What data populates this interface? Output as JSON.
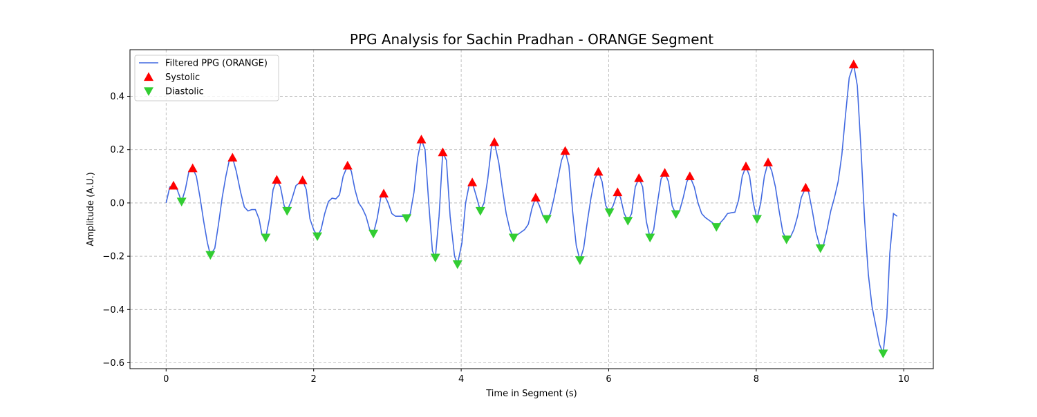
{
  "chart_data": {
    "type": "line",
    "title": "PPG Analysis for Sachin Pradhan - ORANGE Segment",
    "x_label": "Time in Segment (s)",
    "y_label": "Amplitude (A.U.)",
    "xlim": [
      -0.49,
      10.4
    ],
    "ylim": [
      -0.622,
      0.575
    ],
    "xticks": [
      0,
      2,
      4,
      6,
      8,
      10
    ],
    "yticks": [
      {
        "value": -0.6,
        "label": "−0.6"
      },
      {
        "value": -0.4,
        "label": "−0.4"
      },
      {
        "value": -0.2,
        "label": "−0.2"
      },
      {
        "value": 0,
        "label": "0.0"
      },
      0.2,
      0.4
    ],
    "grid": true,
    "legend": "upper-left",
    "series": [
      {
        "name": "Filtered PPG (ORANGE)",
        "kind": "line",
        "color": "#4169e1",
        "x": [
          0,
          0.05,
          0.1,
          0.15,
          0.21,
          0.26,
          0.31,
          0.36,
          0.41,
          0.46,
          0.51,
          0.56,
          0.6,
          0.66,
          0.71,
          0.76,
          0.81,
          0.86,
          0.9,
          0.95,
          1.01,
          1.06,
          1.11,
          1.16,
          1.21,
          1.26,
          1.3,
          1.35,
          1.4,
          1.45,
          1.5,
          1.55,
          1.6,
          1.64,
          1.7,
          1.76,
          1.85,
          1.9,
          1.95,
          2,
          2.05,
          2.1,
          2.15,
          2.2,
          2.25,
          2.3,
          2.35,
          2.4,
          2.46,
          2.51,
          2.56,
          2.61,
          2.66,
          2.71,
          2.76,
          2.81,
          2.86,
          2.91,
          2.95,
          3.01,
          3.06,
          3.11,
          3.21,
          3.26,
          3.31,
          3.36,
          3.41,
          3.46,
          3.51,
          3.56,
          3.61,
          3.65,
          3.7,
          3.75,
          3.8,
          3.85,
          3.91,
          3.95,
          4.01,
          4.06,
          4.11,
          4.15,
          4.2,
          4.26,
          4.31,
          4.36,
          4.41,
          4.45,
          4.51,
          4.56,
          4.61,
          4.66,
          4.71,
          4.76,
          4.81,
          4.86,
          4.91,
          4.96,
          5.01,
          5.06,
          5.11,
          5.16,
          5.21,
          5.26,
          5.31,
          5.36,
          5.41,
          5.46,
          5.51,
          5.56,
          5.61,
          5.66,
          5.71,
          5.76,
          5.81,
          5.86,
          5.91,
          5.96,
          6.01,
          6.06,
          6.12,
          6.16,
          6.21,
          6.26,
          6.31,
          6.36,
          6.41,
          6.46,
          6.51,
          6.56,
          6.61,
          6.66,
          6.71,
          6.76,
          6.81,
          6.86,
          6.91,
          6.96,
          7.01,
          7.06,
          7.1,
          7.16,
          7.21,
          7.26,
          7.31,
          7.36,
          7.41,
          7.46,
          7.51,
          7.56,
          7.61,
          7.66,
          7.71,
          7.76,
          7.81,
          7.86,
          7.91,
          7.96,
          8.01,
          8.06,
          8.11,
          8.16,
          8.21,
          8.26,
          8.31,
          8.36,
          8.41,
          8.46,
          8.51,
          8.56,
          8.61,
          8.67,
          8.71,
          8.76,
          8.81,
          8.87,
          8.91,
          8.96,
          9.01,
          9.06,
          9.11,
          9.16,
          9.21,
          9.26,
          9.32,
          9.37,
          9.42,
          9.47,
          9.52,
          9.57,
          9.62,
          9.67,
          9.72,
          9.77,
          9.81,
          9.86,
          9.91
        ],
        "values": [
          0,
          0.06,
          0.065,
          0.05,
          0.005,
          0.05,
          0.12,
          0.13,
          0.1,
          0.02,
          -0.07,
          -0.15,
          -0.195,
          -0.17,
          -0.08,
          0.02,
          0.1,
          0.165,
          0.17,
          0.12,
          0.04,
          -0.015,
          -0.03,
          -0.025,
          -0.025,
          -0.06,
          -0.12,
          -0.13,
          -0.06,
          0.05,
          0.087,
          0.06,
          -0.01,
          -0.03,
          0.01,
          0.065,
          0.085,
          0.05,
          -0.06,
          -0.1,
          -0.125,
          -0.1,
          -0.04,
          0.005,
          0.018,
          0.015,
          0.03,
          0.1,
          0.14,
          0.12,
          0.05,
          0,
          -0.02,
          -0.05,
          -0.1,
          -0.115,
          -0.06,
          0.02,
          0.035,
          0,
          -0.04,
          -0.05,
          -0.05,
          -0.057,
          -0.04,
          0.04,
          0.17,
          0.238,
          0.2,
          0,
          -0.18,
          -0.205,
          -0.05,
          0.19,
          0.16,
          -0.05,
          -0.2,
          -0.23,
          -0.15,
          0,
          0.07,
          0.077,
          0.03,
          -0.03,
          0,
          0.09,
          0.21,
          0.228,
          0.15,
          0.05,
          -0.04,
          -0.1,
          -0.13,
          -0.12,
          -0.11,
          -0.1,
          -0.08,
          -0.02,
          0.02,
          -0.01,
          -0.05,
          -0.06,
          -0.04,
          0.02,
          0.09,
          0.16,
          0.195,
          0.14,
          -0.03,
          -0.16,
          -0.215,
          -0.17,
          -0.07,
          0.02,
          0.09,
          0.117,
          0.08,
          -0.01,
          -0.035,
          -0.01,
          0.04,
          0.02,
          -0.04,
          -0.067,
          -0.04,
          0.06,
          0.093,
          0.06,
          -0.07,
          -0.13,
          -0.1,
          0,
          0.09,
          0.113,
          0.08,
          -0.01,
          -0.042,
          -0.03,
          0.02,
          0.08,
          0.1,
          0.06,
          0,
          -0.04,
          -0.055,
          -0.065,
          -0.075,
          -0.09,
          -0.075,
          -0.06,
          -0.04,
          -0.037,
          -0.035,
          0.01,
          0.1,
          0.137,
          0.1,
          0,
          -0.06,
          0,
          0.1,
          0.152,
          0.12,
          0.06,
          -0.03,
          -0.11,
          -0.137,
          -0.13,
          -0.1,
          -0.05,
          0.02,
          0.057,
          0.04,
          -0.03,
          -0.11,
          -0.17,
          -0.16,
          -0.1,
          -0.03,
          0.02,
          0.08,
          0.18,
          0.33,
          0.47,
          0.52,
          0.44,
          0.2,
          -0.07,
          -0.27,
          -0.39,
          -0.46,
          -0.53,
          -0.565,
          -0.43,
          -0.19,
          -0.04,
          -0.05
        ]
      },
      {
        "name": "Systolic",
        "kind": "scatter",
        "marker": "triangle-up",
        "color": "#ff0000",
        "x": [
          0.1,
          0.36,
          0.9,
          1.5,
          1.85,
          2.46,
          2.95,
          3.46,
          3.75,
          4.15,
          4.45,
          5.01,
          5.41,
          5.86,
          6.12,
          6.41,
          6.76,
          7.1,
          7.86,
          8.16,
          8.67,
          9.32
        ],
        "values": [
          0.065,
          0.13,
          0.17,
          0.087,
          0.085,
          0.14,
          0.035,
          0.238,
          0.19,
          0.077,
          0.228,
          0.02,
          0.195,
          0.117,
          0.04,
          0.093,
          0.113,
          0.1,
          0.137,
          0.152,
          0.057,
          0.52
        ]
      },
      {
        "name": "Diastolic",
        "kind": "scatter",
        "marker": "triangle-down",
        "color": "#32cd32",
        "x": [
          0.21,
          0.6,
          1.35,
          1.64,
          2.05,
          2.81,
          3.26,
          3.65,
          3.95,
          4.26,
          4.71,
          5.16,
          5.61,
          6.01,
          6.26,
          6.56,
          6.91,
          7.46,
          8.01,
          8.41,
          8.87,
          9.72
        ],
        "values": [
          0.005,
          -0.195,
          -0.13,
          -0.03,
          -0.125,
          -0.115,
          -0.057,
          -0.205,
          -0.23,
          -0.03,
          -0.13,
          -0.06,
          -0.215,
          -0.035,
          -0.067,
          -0.13,
          -0.042,
          -0.09,
          -0.06,
          -0.137,
          -0.17,
          -0.565
        ]
      }
    ]
  }
}
